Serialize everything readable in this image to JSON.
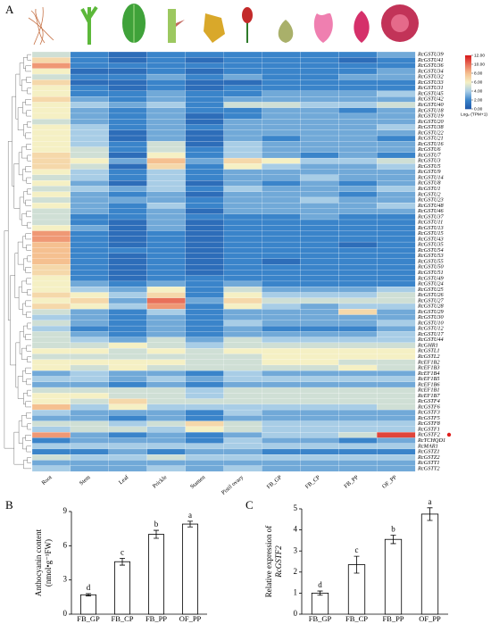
{
  "chart_data": [
    {
      "type": "heatmap",
      "label": "A",
      "columns": [
        "Root",
        "Stem",
        "Leaf",
        "Prickle",
        "Stamen",
        "Pistil ovary",
        "FB_GP",
        "FB_CP",
        "FB_PP",
        "OF_PP"
      ],
      "rows": [
        "RcGSTU39",
        "RcGSTU41",
        "RcGSTU36",
        "RcGSTU34",
        "RcGSTU32",
        "RcGSTU33",
        "RcGSTU31",
        "RcGSTU45",
        "RcGSTU42",
        "RcGSTU40",
        "RcGSTU18",
        "RcGSTU19",
        "RcGSTU20",
        "RcGSTU38",
        "RcGSTU22",
        "RcGSTU21",
        "RcGSTU16",
        "RcGSTU6",
        "RcGSTU7",
        "RcGSTU3",
        "RcGSTU5",
        "RcGSTU9",
        "RcGSTU14",
        "RcGSTU8",
        "RcGSTU1",
        "RcGSTU2",
        "RcGSTU23",
        "RcGSTU48",
        "RcGSTU46",
        "RcGSTU37",
        "RcGSTU11",
        "RcGSTU13",
        "RcGSTU15",
        "RcGSTU43",
        "RcGSTU35",
        "RcGSTU54",
        "RcGSTU53",
        "RcGSTU55",
        "RcGSTU50",
        "RcGSTU51",
        "RcGSTU49",
        "RcGSTU24",
        "RcGSTU25",
        "RcGSTU26",
        "RcGSTU27",
        "RcGSTU28",
        "RcGSTU29",
        "RcGSTU30",
        "RcGSTU10",
        "RcGSTU12",
        "RcGSTU17",
        "RcGSTU44",
        "RcGHR1",
        "RcGSTL1",
        "RcGSTL2",
        "RcEF1B2",
        "RcEF1B3",
        "RcEF1B4",
        "RcEF1B5",
        "RcEF1B6",
        "RcEF1B1",
        "RcEF1B7",
        "RcGSTF4",
        "RcGSTF6",
        "RcGSTF3",
        "RcGSTF5",
        "RcGSTF8",
        "RcGSTF1",
        "RcGSTF2",
        "RcTCHQD1",
        "RcMAR1",
        "RcGSTZ1",
        "RcGSTZ2",
        "RcGSTT1",
        "RcGSTT2"
      ],
      "values": [
        [
          5,
          2,
          1,
          2,
          2,
          2,
          2,
          2,
          2,
          3
        ],
        [
          7,
          2,
          1,
          2,
          1,
          2,
          2,
          2,
          1,
          2
        ],
        [
          9,
          2,
          2,
          2,
          2,
          2,
          2,
          2,
          2,
          2
        ],
        [
          6,
          1,
          1,
          2,
          1,
          2,
          2,
          2,
          2,
          3
        ],
        [
          5,
          2,
          2,
          3,
          2,
          3,
          2,
          2,
          3,
          3
        ],
        [
          7,
          1,
          1,
          2,
          1,
          1,
          2,
          2,
          2,
          2
        ],
        [
          6,
          2,
          1,
          2,
          1,
          2,
          2,
          2,
          2,
          2
        ],
        [
          6,
          2,
          2,
          3,
          2,
          2,
          3,
          3,
          3,
          4
        ],
        [
          7,
          3,
          2,
          3,
          2,
          3,
          3,
          3,
          3,
          3
        ],
        [
          6,
          4,
          3,
          4,
          2,
          5,
          5,
          4,
          4,
          5
        ],
        [
          6,
          3,
          2,
          3,
          2,
          2,
          3,
          3,
          2,
          3
        ],
        [
          6,
          3,
          2,
          3,
          1,
          2,
          3,
          3,
          3,
          3
        ],
        [
          5,
          3,
          2,
          3,
          1,
          3,
          3,
          3,
          3,
          3
        ],
        [
          6,
          4,
          2,
          3,
          2,
          3,
          3,
          3,
          3,
          4
        ],
        [
          6,
          4,
          1,
          3,
          1,
          3,
          3,
          3,
          3,
          3
        ],
        [
          6,
          4,
          1,
          3,
          1,
          3,
          2,
          3,
          3,
          2
        ],
        [
          6,
          4,
          2,
          5,
          1,
          4,
          3,
          3,
          3,
          3
        ],
        [
          6,
          5,
          2,
          5,
          2,
          4,
          3,
          3,
          3,
          3
        ],
        [
          7,
          5,
          1,
          6,
          2,
          4,
          3,
          2,
          3,
          2
        ],
        [
          7,
          6,
          3,
          8,
          3,
          7,
          6,
          4,
          4,
          5
        ],
        [
          7,
          5,
          1,
          7,
          2,
          6,
          4,
          3,
          3,
          4
        ],
        [
          6,
          4,
          2,
          4,
          2,
          3,
          3,
          3,
          3,
          3
        ],
        [
          5,
          4,
          2,
          4,
          2,
          3,
          3,
          4,
          3,
          3
        ],
        [
          6,
          3,
          1,
          4,
          1,
          3,
          2,
          3,
          2,
          3
        ],
        [
          5,
          4,
          3,
          4,
          2,
          4,
          3,
          3,
          3,
          4
        ],
        [
          6,
          3,
          2,
          3,
          1,
          3,
          3,
          3,
          2,
          3
        ],
        [
          5,
          3,
          3,
          3,
          2,
          3,
          3,
          4,
          3,
          3
        ],
        [
          6,
          3,
          2,
          4,
          2,
          3,
          3,
          3,
          3,
          4
        ],
        [
          5,
          3,
          2,
          3,
          1,
          3,
          3,
          3,
          3,
          3
        ],
        [
          5,
          2,
          2,
          3,
          2,
          2,
          2,
          3,
          2,
          2
        ],
        [
          5,
          2,
          1,
          3,
          1,
          2,
          2,
          2,
          2,
          2
        ],
        [
          6,
          3,
          1,
          3,
          1,
          2,
          2,
          2,
          2,
          2
        ],
        [
          9,
          2,
          1,
          2,
          1,
          2,
          2,
          2,
          2,
          2
        ],
        [
          9,
          2,
          1,
          2,
          1,
          2,
          2,
          2,
          2,
          2
        ],
        [
          8,
          2,
          1,
          2,
          1,
          2,
          2,
          2,
          1,
          2
        ],
        [
          8,
          2,
          2,
          2,
          1,
          2,
          2,
          2,
          2,
          2
        ],
        [
          8,
          2,
          1,
          2,
          1,
          2,
          2,
          2,
          2,
          2
        ],
        [
          8,
          2,
          1,
          2,
          1,
          2,
          1,
          2,
          2,
          2
        ],
        [
          7,
          2,
          1,
          2,
          1,
          2,
          2,
          2,
          2,
          2
        ],
        [
          7,
          2,
          1,
          2,
          1,
          2,
          2,
          2,
          2,
          2
        ],
        [
          6,
          2,
          1,
          2,
          2,
          2,
          2,
          2,
          2,
          2
        ],
        [
          6,
          3,
          2,
          3,
          2,
          3,
          2,
          2,
          2,
          2
        ],
        [
          6,
          4,
          3,
          6,
          2,
          5,
          3,
          3,
          3,
          4
        ],
        [
          7,
          6,
          4,
          7,
          2,
          6,
          4,
          4,
          4,
          5
        ],
        [
          6,
          7,
          3,
          10,
          3,
          7,
          5,
          5,
          5,
          5
        ],
        [
          7,
          6,
          4,
          9,
          2,
          6,
          4,
          3,
          4,
          4
        ],
        [
          5,
          3,
          2,
          4,
          2,
          3,
          3,
          3,
          7,
          3
        ],
        [
          4,
          3,
          2,
          3,
          2,
          3,
          3,
          3,
          3,
          3
        ],
        [
          5,
          3,
          2,
          3,
          2,
          4,
          3,
          3,
          3,
          4
        ],
        [
          4,
          2,
          2,
          3,
          2,
          3,
          2,
          2,
          2,
          3
        ],
        [
          5,
          3,
          2,
          3,
          2,
          3,
          3,
          3,
          3,
          4
        ],
        [
          5,
          4,
          3,
          5,
          3,
          5,
          4,
          4,
          4,
          4
        ],
        [
          5,
          5,
          6,
          5,
          4,
          5,
          5,
          5,
          5,
          5
        ],
        [
          6,
          6,
          5,
          6,
          5,
          6,
          6,
          6,
          6,
          6
        ],
        [
          5,
          5,
          5,
          5,
          5,
          5,
          6,
          6,
          6,
          6
        ],
        [
          6,
          6,
          6,
          6,
          5,
          5,
          6,
          6,
          5,
          5
        ],
        [
          6,
          5,
          6,
          5,
          5,
          5,
          5,
          5,
          6,
          5
        ],
        [
          3,
          4,
          3,
          3,
          2,
          4,
          3,
          3,
          3,
          3
        ],
        [
          4,
          4,
          3,
          4,
          3,
          4,
          4,
          4,
          4,
          4
        ],
        [
          3,
          3,
          2,
          3,
          2,
          3,
          3,
          3,
          3,
          3
        ],
        [
          5,
          5,
          5,
          5,
          4,
          5,
          5,
          5,
          5,
          5
        ],
        [
          6,
          6,
          5,
          5,
          4,
          5,
          5,
          5,
          5,
          5
        ],
        [
          6,
          5,
          7,
          5,
          5,
          5,
          5,
          5,
          5,
          5
        ],
        [
          8,
          4,
          6,
          4,
          4,
          4,
          4,
          4,
          4,
          5
        ],
        [
          4,
          3,
          3,
          3,
          2,
          4,
          3,
          3,
          3,
          3
        ],
        [
          3,
          3,
          2,
          3,
          2,
          3,
          3,
          3,
          3,
          3
        ],
        [
          5,
          5,
          4,
          5,
          7,
          5,
          4,
          4,
          4,
          4
        ],
        [
          4,
          5,
          5,
          4,
          6,
          5,
          4,
          4,
          4,
          4
        ],
        [
          9,
          3,
          2,
          3,
          2,
          3,
          4,
          4,
          5,
          11
        ],
        [
          2,
          3,
          3,
          3,
          2,
          4,
          3,
          3,
          2,
          3
        ],
        [
          4,
          4,
          4,
          4,
          4,
          4,
          4,
          4,
          4,
          4
        ],
        [
          2,
          2,
          3,
          2,
          3,
          3,
          2,
          2,
          2,
          2
        ],
        [
          5,
          4,
          4,
          5,
          4,
          4,
          4,
          4,
          4,
          4
        ],
        [
          3,
          3,
          3,
          3,
          3,
          3,
          3,
          3,
          3,
          3
        ],
        [
          4,
          3,
          3,
          4,
          3,
          4,
          3,
          3,
          3,
          3
        ]
      ],
      "zlim": [
        0,
        12
      ],
      "zticks": [
        {
          "value": 0,
          "label": "0.00"
        },
        {
          "value": 2,
          "label": "2.00"
        },
        {
          "value": 4,
          "label": "4.00"
        },
        {
          "value": 6,
          "label": "6.00"
        },
        {
          "value": 8,
          "label": "8.00"
        },
        {
          "value": 10,
          "label": "10.00"
        },
        {
          "value": 12,
          "label": "12.00"
        }
      ],
      "colorbar_label": "Log₂ (TPM+1)"
    },
    {
      "type": "bar",
      "label": "B",
      "categories": [
        "FB_GP",
        "FB_CP",
        "FB_PP",
        "OF_PP"
      ],
      "values": [
        1.7,
        4.6,
        7.0,
        7.9
      ],
      "errors": [
        0.1,
        0.3,
        0.35,
        0.25
      ],
      "annotations": [
        "d",
        "c",
        "b",
        "a"
      ],
      "y_label": [
        "Anthocyanin content",
        "(nmol•g⁻¹FW)"
      ],
      "ylim": [
        0,
        9
      ],
      "yticks": [
        0,
        3,
        6,
        9
      ],
      "color": "#ffffff"
    },
    {
      "type": "bar",
      "label": "C",
      "categories": [
        "FB_GP",
        "FB_CP",
        "FB_PP",
        "OF_PP"
      ],
      "values": [
        1.0,
        2.35,
        3.55,
        4.75
      ],
      "errors": [
        0.1,
        0.4,
        0.2,
        0.3
      ],
      "annotations": [
        "d",
        "c",
        "b",
        "a"
      ],
      "y_label": [
        "Relative expression of",
        "RcGSTF2"
      ],
      "ylim": [
        0,
        5
      ],
      "yticks": [
        0,
        1,
        2,
        3,
        4,
        5
      ],
      "color": "#ffffff"
    }
  ]
}
